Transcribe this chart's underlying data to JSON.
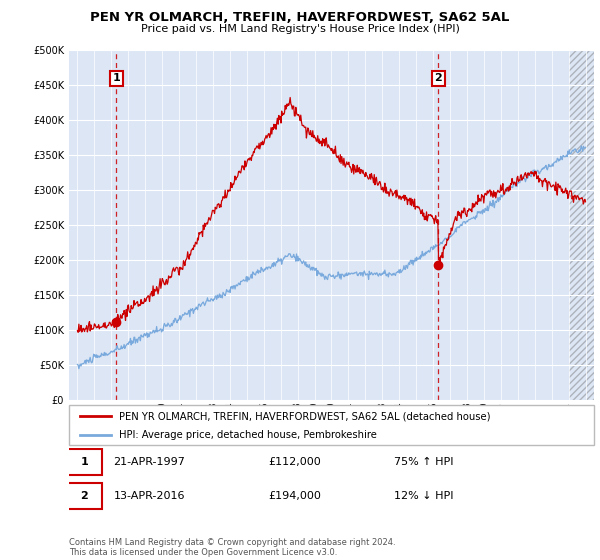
{
  "title": "PEN YR OLMARCH, TREFIN, HAVERFORDWEST, SA62 5AL",
  "subtitle": "Price paid vs. HM Land Registry's House Price Index (HPI)",
  "legend_label_red": "PEN YR OLMARCH, TREFIN, HAVERFORDWEST, SA62 5AL (detached house)",
  "legend_label_blue": "HPI: Average price, detached house, Pembrokeshire",
  "annotation1_date": "21-APR-1997",
  "annotation1_price": "£112,000",
  "annotation1_hpi": "75% ↑ HPI",
  "annotation1_year": 1997.3,
  "annotation1_value": 112000,
  "annotation2_date": "13-APR-2016",
  "annotation2_price": "£194,000",
  "annotation2_hpi": "12% ↓ HPI",
  "annotation2_year": 2016.3,
  "annotation2_value": 194000,
  "red_color": "#cc0000",
  "blue_color": "#7aaadd",
  "background_color": "#dce6f5",
  "footer_text": "Contains HM Land Registry data © Crown copyright and database right 2024.\nThis data is licensed under the Open Government Licence v3.0.",
  "ylim": [
    0,
    500000
  ],
  "yticks": [
    0,
    50000,
    100000,
    150000,
    200000,
    250000,
    300000,
    350000,
    400000,
    450000,
    500000
  ],
  "xlim_start": 1994.5,
  "xlim_end": 2025.5,
  "hatch_start": 2024.0
}
